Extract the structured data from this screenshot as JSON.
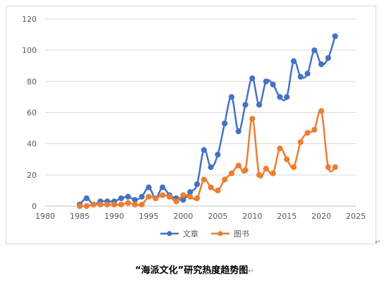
{
  "chart_data": {
    "type": "line",
    "title": "",
    "xlabel": "",
    "ylabel": "",
    "xlim": [
      1980,
      2025
    ],
    "ylim": [
      0,
      120
    ],
    "x_ticks": [
      1980,
      1985,
      1990,
      1995,
      2000,
      2005,
      2010,
      2015,
      2020,
      2025
    ],
    "y_ticks": [
      0,
      20,
      40,
      60,
      80,
      100,
      120
    ],
    "grid": "horizontal",
    "legend_position": "bottom",
    "series": [
      {
        "name": "文章",
        "color": "#4472C4",
        "x": [
          1985,
          1986,
          1987,
          1988,
          1989,
          1990,
          1991,
          1992,
          1993,
          1994,
          1995,
          1996,
          1997,
          1998,
          1999,
          2000,
          2001,
          2002,
          2003,
          2004,
          2005,
          2006,
          2007,
          2008,
          2009,
          2010,
          2011,
          2012,
          2013,
          2014,
          2015,
          2016,
          2017,
          2018,
          2019,
          2020,
          2021,
          2022
        ],
        "y": [
          1,
          5,
          1,
          3,
          3,
          3,
          5,
          6,
          4,
          6,
          12,
          5,
          12,
          7,
          5,
          4,
          9,
          14,
          36,
          25,
          33,
          53,
          70,
          48,
          65,
          82,
          65,
          80,
          78,
          70,
          70,
          93,
          83,
          85,
          100,
          91,
          95,
          109
        ]
      },
      {
        "name": "图书",
        "color": "#ED7D31",
        "x": [
          1985,
          1986,
          1987,
          1988,
          1989,
          1990,
          1991,
          1992,
          1993,
          1994,
          1995,
          1996,
          1997,
          1998,
          1999,
          2000,
          2001,
          2002,
          2003,
          2004,
          2005,
          2006,
          2007,
          2008,
          2009,
          2010,
          2011,
          2012,
          2013,
          2014,
          2015,
          2016,
          2017,
          2018,
          2019,
          2020,
          2021,
          2022
        ],
        "y": [
          0,
          0,
          1,
          1,
          1,
          1,
          1,
          2,
          1,
          1,
          6,
          5,
          7,
          6,
          3,
          7,
          6,
          5,
          17,
          12,
          10,
          17,
          21,
          26,
          23,
          56,
          20,
          24,
          21,
          37,
          30,
          25,
          41,
          47,
          49,
          61,
          25,
          25
        ]
      }
    ]
  },
  "caption": "“海派文化”研究热度趋势图",
  "return_mark": "↵"
}
